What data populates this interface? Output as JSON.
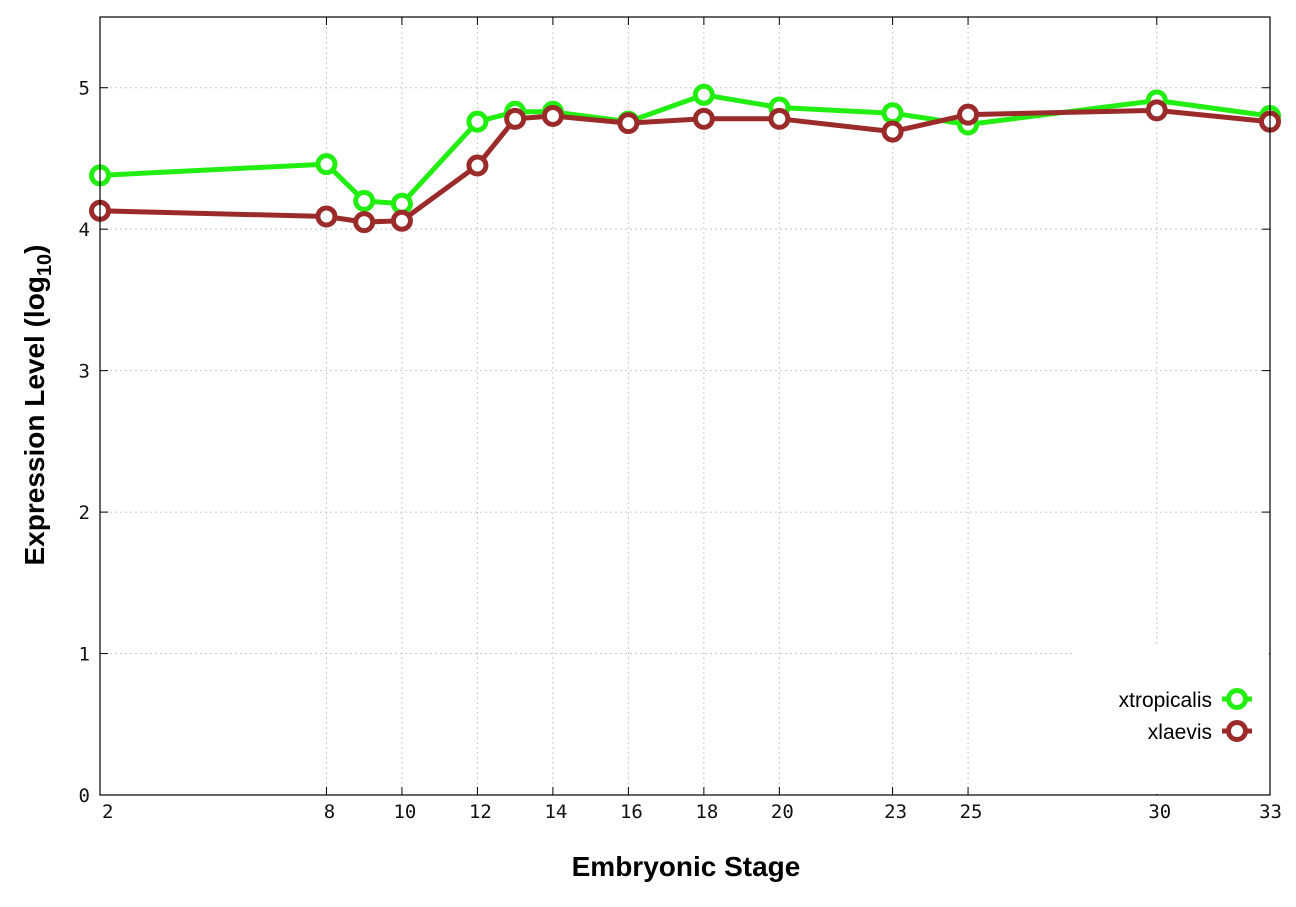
{
  "chart_data": {
    "type": "line",
    "title": "",
    "xlabel": "Embryonic Stage",
    "ylabel": {
      "prefix": "Expression Level (log",
      "subscript": "10",
      "suffix": ")"
    },
    "x": [
      2,
      8,
      9,
      10,
      12,
      13,
      14,
      16,
      18,
      20,
      23,
      25,
      30,
      33
    ],
    "x_tick_labels": [
      "2",
      "8",
      "10",
      "12",
      "14",
      "16",
      "18",
      "20",
      "23",
      "25",
      "30",
      "33"
    ],
    "y_ticks": [
      0,
      1,
      2,
      3,
      4,
      5
    ],
    "xlim": [
      2,
      33
    ],
    "ylim": [
      0,
      5.5
    ],
    "grid": true,
    "legend_position": "bottom-right",
    "series": [
      {
        "name": "xtropicalis",
        "color": "#22ee11",
        "values": [
          4.38,
          4.46,
          4.2,
          4.18,
          4.76,
          4.83,
          4.83,
          4.76,
          4.95,
          4.86,
          4.82,
          4.74,
          4.91,
          4.8
        ]
      },
      {
        "name": "xlaevis",
        "color": "#9b2b2b",
        "values": [
          4.13,
          4.09,
          4.05,
          4.06,
          4.45,
          4.78,
          4.8,
          4.75,
          4.78,
          4.78,
          4.69,
          4.81,
          4.84,
          4.76
        ]
      }
    ]
  }
}
